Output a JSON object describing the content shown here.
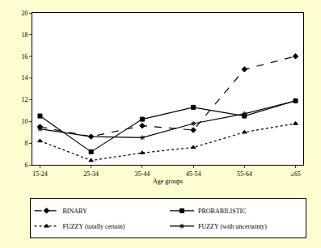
{
  "chart_data": {
    "type": "line",
    "x_label": "Age groups",
    "categories": [
      "15-24",
      "25-34",
      "35-44",
      "45-54",
      "55-64",
      "≥65"
    ],
    "series": [
      {
        "name": "BINARY",
        "color": "#000000",
        "marker": "diamond",
        "line_style": "dash",
        "values": [
          9.5,
          8.6,
          9.6,
          9.2,
          14.8,
          16.0
        ]
      },
      {
        "name": "PROBABILISTIC",
        "color": "#000000",
        "marker": "square",
        "line_style": "solid",
        "values": [
          10.5,
          7.2,
          10.2,
          11.3,
          10.5,
          11.9
        ]
      },
      {
        "name": "FUZZY (totally certain)",
        "color": "#000000",
        "marker": "triangle-up",
        "line_style": "dot",
        "values": [
          8.2,
          6.4,
          7.1,
          7.6,
          9.0,
          9.8
        ]
      },
      {
        "name": "FUZZY (with uncertainty)",
        "color": "#000000",
        "marker": "asterisk",
        "line_style": "solid",
        "values": [
          9.3,
          8.6,
          8.5,
          9.8,
          10.7,
          11.9
        ]
      }
    ],
    "ylim": [
      6,
      20
    ],
    "yticks": [
      6,
      8,
      10,
      12,
      14,
      16,
      18,
      20
    ],
    "grid": false,
    "legend": "bottom"
  }
}
